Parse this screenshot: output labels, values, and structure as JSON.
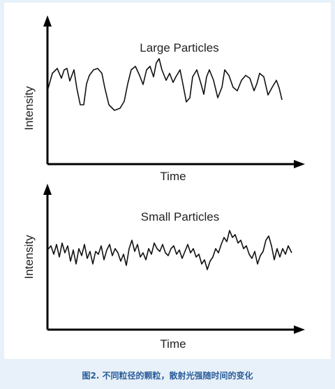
{
  "plots": [
    {
      "title": "Large Particles",
      "y_label": "Intensity",
      "x_label": "Time"
    },
    {
      "title": "Small Particles",
      "y_label": "Intensity",
      "x_label": "Time"
    }
  ],
  "caption": "图2. 不同粒径的颗粒，散射光强随时间的变化"
}
